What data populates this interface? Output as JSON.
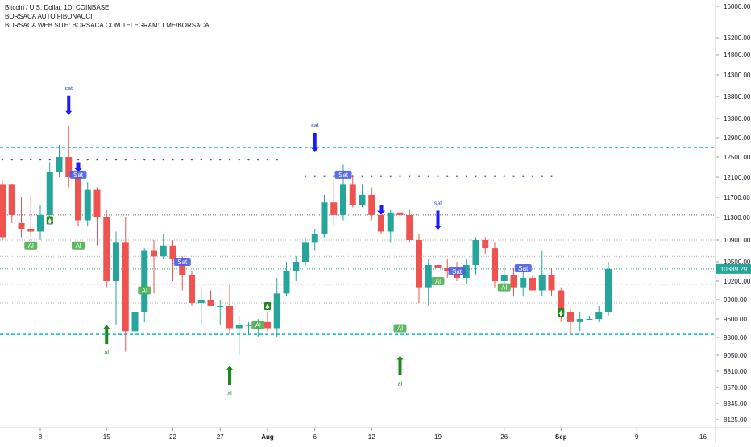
{
  "header": {
    "symbol_line": "Bitcoin / U.S. Dollar, 1D, COINBASE",
    "indicator_line": "BORSACA AUTO FIBONACCI",
    "website_line": "BORSACA WEB SITE: BORSACA.COM TELEGRAM: T.ME/BORSACA"
  },
  "price_tag": {
    "value": "10389.29",
    "color": "#26a69a"
  },
  "colors": {
    "up": "#26a69a",
    "down": "#ef5350",
    "fib_cyan": "#00bcd4",
    "fib_gray": "#8a8a8a",
    "fib_green": "#26a69a",
    "dots": "#3f51b5",
    "sell_arrow": "#1a1aff",
    "buy_arrow": "#1b8a1b",
    "sat_label_bg": "#4a5de8",
    "al_label_bg": "#4caf50"
  },
  "chart_data": {
    "type": "candlestick",
    "y_axis": {
      "ticks": [
        "16000.00",
        "15200.00",
        "14800.00",
        "14300.00",
        "13800.00",
        "13300.00",
        "12900.00",
        "12500.00",
        "12100.00",
        "11700.00",
        "11300.00",
        "10900.00",
        "10500.00",
        "10200.00",
        "9900.00",
        "9600.00",
        "9300.00",
        "9050.00",
        "8810.00",
        "8570.00",
        "8345.00",
        "8125.00"
      ],
      "ylim": [
        8000,
        16300
      ]
    },
    "x_axis": {
      "ticks": [
        {
          "label": "8",
          "index": 4
        },
        {
          "label": "15",
          "index": 11
        },
        {
          "label": "22",
          "index": 18
        },
        {
          "label": "27",
          "index": 23
        },
        {
          "label": "Aug",
          "index": 28
        },
        {
          "label": "6",
          "index": 33
        },
        {
          "label": "12",
          "index": 39
        },
        {
          "label": "19",
          "index": 46
        },
        {
          "label": "26",
          "index": 53
        },
        {
          "label": "Sep",
          "index": 59
        },
        {
          "label": "9",
          "index": 67
        },
        {
          "label": "16",
          "index": 74
        }
      ]
    },
    "candles": [
      [
        11950,
        12050,
        10900,
        10950
      ],
      [
        11950,
        11970,
        11200,
        11350
      ],
      [
        11200,
        11700,
        10950,
        11100
      ],
      [
        11100,
        11750,
        10750,
        11050
      ],
      [
        11050,
        11550,
        10900,
        11350
      ],
      [
        11350,
        12400,
        11250,
        12200
      ],
      [
        12200,
        12750,
        12100,
        12500
      ],
      [
        12500,
        13150,
        11900,
        12100
      ],
      [
        12100,
        12150,
        11150,
        11250
      ],
      [
        11250,
        12000,
        11150,
        11850
      ],
      [
        11850,
        11900,
        10800,
        11300
      ],
      [
        11300,
        11450,
        10100,
        10200
      ],
      [
        10200,
        11050,
        9500,
        10850
      ],
      [
        10850,
        11300,
        9100,
        9400
      ],
      [
        9400,
        10250,
        9000,
        9700
      ],
      [
        9700,
        10750,
        9550,
        10700
      ],
      [
        10700,
        10900,
        10000,
        10600
      ],
      [
        10600,
        11000,
        10550,
        10800
      ],
      [
        10800,
        10900,
        10200,
        10550
      ],
      [
        10550,
        10600,
        10050,
        10300
      ],
      [
        10300,
        10350,
        9800,
        9850
      ],
      [
        9850,
        10100,
        9500,
        9900
      ],
      [
        9900,
        10050,
        9800,
        9800
      ],
      [
        9800,
        9900,
        9500,
        9800
      ],
      [
        9800,
        10150,
        9350,
        9450
      ],
      [
        9450,
        9650,
        9050,
        9500
      ],
      [
        9500,
        9550,
        9350,
        9500
      ],
      [
        9450,
        9600,
        9300,
        9550
      ],
      [
        9550,
        9700,
        9400,
        9450
      ],
      [
        9450,
        10250,
        9300,
        10000
      ],
      [
        10000,
        10500,
        9950,
        10350
      ],
      [
        10350,
        10600,
        10200,
        10500
      ],
      [
        10500,
        10950,
        10450,
        10850
      ],
      [
        10850,
        11100,
        10700,
        11000
      ],
      [
        11000,
        11750,
        10950,
        11600
      ],
      [
        11600,
        12050,
        11150,
        11350
      ],
      [
        11350,
        12350,
        11250,
        11950
      ],
      [
        11950,
        12150,
        11500,
        11550
      ],
      [
        11550,
        11950,
        11500,
        11750
      ],
      [
        11750,
        11900,
        11250,
        11350
      ],
      [
        11350,
        11450,
        11000,
        11050
      ],
      [
        11050,
        11450,
        10850,
        11400
      ],
      [
        11400,
        11600,
        11200,
        11350
      ],
      [
        11350,
        11450,
        10850,
        10900
      ],
      [
        10900,
        11000,
        9850,
        10100
      ],
      [
        10100,
        10550,
        9800,
        10450
      ],
      [
        10450,
        10550,
        9850,
        10400
      ],
      [
        10400,
        10550,
        10250,
        10350
      ],
      [
        10350,
        10500,
        10200,
        10250
      ],
      [
        10250,
        10550,
        10150,
        10450
      ],
      [
        10450,
        10950,
        10300,
        10900
      ],
      [
        10900,
        10950,
        10650,
        10750
      ],
      [
        10750,
        10850,
        10100,
        10200
      ],
      [
        10200,
        10450,
        10050,
        10300
      ],
      [
        10300,
        10400,
        9950,
        10100
      ],
      [
        10100,
        10350,
        9950,
        10250
      ],
      [
        10250,
        10300,
        10050,
        10050
      ],
      [
        10050,
        10700,
        9950,
        10300
      ],
      [
        10300,
        10400,
        9950,
        10050
      ],
      [
        10050,
        10100,
        9550,
        9700
      ],
      [
        9700,
        9750,
        9350,
        9550
      ],
      [
        9550,
        9700,
        9400,
        9600
      ],
      [
        9600,
        9650,
        9600,
        9600
      ],
      [
        9600,
        9800,
        9550,
        9700
      ],
      [
        9700,
        10500,
        9650,
        10389.29
      ]
    ],
    "fib_levels": [
      {
        "price": 12700,
        "style": "cyan-dashed"
      },
      {
        "price": 11350,
        "style": "gray-dotted"
      },
      {
        "price": 10900,
        "style": "gray-dotted-light"
      },
      {
        "price": 10600,
        "style": "gray-dotted-light"
      },
      {
        "price": 10389.29,
        "style": "green-dotted"
      },
      {
        "price": 10150,
        "style": "gray-dotted-light"
      },
      {
        "price": 9850,
        "style": "gray-dotted-light"
      },
      {
        "price": 9350,
        "style": "cyan-dashed"
      }
    ],
    "dotted_resistance": [
      {
        "from": 0,
        "to": 29,
        "price": 12450
      },
      {
        "from": 32,
        "to": 58,
        "price": 12120
      }
    ],
    "signals": [
      {
        "type": "sell-arrow",
        "index": 7,
        "text": "sat",
        "price": 13600
      },
      {
        "type": "sell-arrow",
        "index": 33,
        "text": "sat",
        "price": 12800
      },
      {
        "type": "sell-arrow",
        "index": 46,
        "text": "sat",
        "price": 11250
      },
      {
        "type": "sell-arrow-small",
        "index": 8,
        "price": 12300
      },
      {
        "type": "sell-arrow-small",
        "index": 40,
        "price": 11450
      },
      {
        "type": "buy-arrow",
        "index": 11,
        "text": "al",
        "price": 9350
      },
      {
        "type": "buy-arrow",
        "index": 24,
        "text": "al",
        "price": 8750
      },
      {
        "type": "buy-arrow",
        "index": 42,
        "text": "al",
        "price": 8900
      },
      {
        "type": "buy-arrow-small",
        "index": 5,
        "price": 11250
      },
      {
        "type": "buy-arrow-small",
        "index": 28,
        "price": 9800
      },
      {
        "type": "buy-arrow-small",
        "index": 59,
        "price": 9700
      },
      {
        "type": "sat-label",
        "index": 8,
        "text": "Sat",
        "price": 12150
      },
      {
        "type": "sat-label",
        "index": 36,
        "text": "Sat",
        "price": 12150
      },
      {
        "type": "sat-label",
        "index": 19,
        "text": "Sat",
        "price": 10500
      },
      {
        "type": "sat-label",
        "index": 48,
        "text": "Sat",
        "price": 10350
      },
      {
        "type": "sat-label",
        "index": 55,
        "text": "Sat",
        "price": 10400
      },
      {
        "type": "al-label",
        "index": 3,
        "text": "Al",
        "price": 10800
      },
      {
        "type": "al-label",
        "index": 8,
        "text": "Al",
        "price": 10800
      },
      {
        "type": "al-label",
        "index": 15,
        "text": "Al",
        "price": 10050
      },
      {
        "type": "al-label",
        "index": 27,
        "text": "Al",
        "price": 9500
      },
      {
        "type": "al-label",
        "index": 42,
        "text": "Al",
        "price": 9450
      },
      {
        "type": "al-label",
        "index": 46,
        "text": "Al",
        "price": 10200
      },
      {
        "type": "al-label",
        "index": 53,
        "text": "Al",
        "price": 10100
      }
    ]
  }
}
